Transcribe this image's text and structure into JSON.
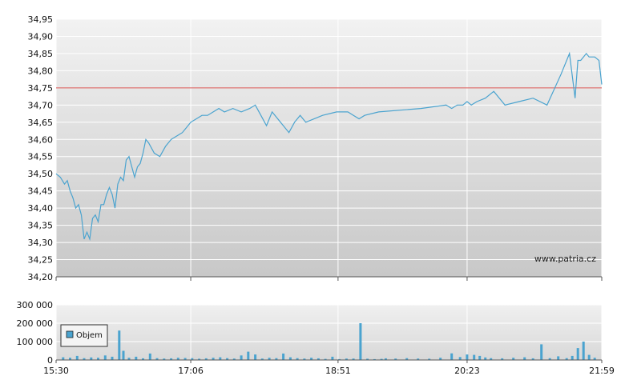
{
  "watermark": "www.patria.cz",
  "chart_data": [
    {
      "type": "line",
      "ylim": [
        34.2,
        34.95
      ],
      "y_ticks": [
        "34,20",
        "34,25",
        "34,30",
        "34,35",
        "34,40",
        "34,45",
        "34,50",
        "34,55",
        "34,60",
        "34,65",
        "34,70",
        "34,75",
        "34,80",
        "34,85",
        "34,90",
        "34,95"
      ],
      "x_ticks": [
        "15:30",
        "17:06",
        "18:51",
        "20:23",
        "21:59"
      ],
      "grid": true,
      "reference_line": 34.75,
      "colors": {
        "line": "#4aa3cf",
        "reference": "#d9534f"
      },
      "series": [
        {
          "x": [
            "15:30",
            "15:33",
            "15:36",
            "15:38",
            "15:40",
            "15:42",
            "15:44",
            "15:46",
            "15:48",
            "15:50",
            "15:52",
            "15:54",
            "15:56",
            "15:58",
            "16:00",
            "16:02",
            "16:04",
            "16:06",
            "16:08",
            "16:10",
            "16:12",
            "16:14",
            "16:16",
            "16:18",
            "16:20",
            "16:22",
            "16:24",
            "16:26",
            "16:28",
            "16:30",
            "16:32",
            "16:34",
            "16:36",
            "16:40",
            "16:44",
            "16:48",
            "16:52",
            "16:56",
            "17:00",
            "17:04",
            "17:06",
            "17:10",
            "17:14",
            "17:18",
            "17:22",
            "17:26",
            "17:30",
            "17:36",
            "17:42",
            "17:48",
            "17:52",
            "17:56",
            "18:00",
            "18:04",
            "18:08",
            "18:12",
            "18:16",
            "18:20",
            "18:24",
            "18:28",
            "18:40",
            "18:50",
            "18:58",
            "19:02",
            "19:06",
            "19:10",
            "19:20",
            "19:50",
            "20:08",
            "20:12",
            "20:16",
            "20:20",
            "20:23",
            "20:26",
            "20:30",
            "20:36",
            "20:42",
            "20:50",
            "21:00",
            "21:10",
            "21:20",
            "21:30",
            "21:36",
            "21:40",
            "21:42",
            "21:44",
            "21:46",
            "21:48",
            "21:50",
            "21:54",
            "21:57",
            "21:59"
          ],
          "values": [
            34.5,
            34.49,
            34.47,
            34.48,
            34.45,
            34.43,
            34.4,
            34.41,
            34.38,
            34.31,
            34.33,
            34.31,
            34.37,
            34.38,
            34.36,
            34.41,
            34.41,
            34.44,
            34.46,
            34.44,
            34.4,
            34.47,
            34.49,
            34.48,
            34.54,
            34.55,
            34.52,
            34.49,
            34.52,
            34.53,
            34.56,
            34.6,
            34.59,
            34.56,
            34.55,
            34.58,
            34.6,
            34.61,
            34.62,
            34.64,
            34.65,
            34.66,
            34.67,
            34.67,
            34.68,
            34.69,
            34.68,
            34.69,
            34.68,
            34.69,
            34.7,
            34.67,
            34.64,
            34.68,
            34.66,
            34.64,
            34.62,
            34.65,
            34.67,
            34.65,
            34.67,
            34.68,
            34.68,
            34.67,
            34.66,
            34.67,
            34.68,
            34.69,
            34.7,
            34.69,
            34.7,
            34.7,
            34.71,
            34.7,
            34.71,
            34.72,
            34.74,
            34.7,
            34.71,
            34.72,
            34.7,
            34.79,
            34.85,
            34.72,
            34.83,
            34.83,
            34.84,
            34.85,
            34.84,
            34.84,
            34.83,
            34.76
          ]
        }
      ]
    },
    {
      "type": "bar",
      "ylim": [
        0,
        300000
      ],
      "y_ticks": [
        "0",
        "100 000",
        "200 000",
        "300 000"
      ],
      "x_ticks": [
        "15:30",
        "17:06",
        "18:51",
        "20:23",
        "21:59"
      ],
      "grid": true,
      "legend": {
        "label": "Objem",
        "placement": "top-left"
      },
      "colors": {
        "bar": "#4aa3cf"
      },
      "series": [
        {
          "name": "Objem",
          "x": [
            "15:35",
            "15:40",
            "15:45",
            "15:50",
            "15:55",
            "16:00",
            "16:05",
            "16:10",
            "16:15",
            "16:18",
            "16:22",
            "16:27",
            "16:32",
            "16:37",
            "16:42",
            "16:47",
            "16:52",
            "16:57",
            "17:02",
            "17:07",
            "17:12",
            "17:17",
            "17:22",
            "17:27",
            "17:32",
            "17:37",
            "17:42",
            "17:47",
            "17:52",
            "17:57",
            "18:02",
            "18:07",
            "18:12",
            "18:17",
            "18:22",
            "18:27",
            "18:32",
            "18:37",
            "18:42",
            "18:47",
            "18:52",
            "18:57",
            "19:02",
            "19:07",
            "19:12",
            "19:17",
            "19:22",
            "19:25",
            "19:32",
            "19:40",
            "19:48",
            "19:56",
            "20:04",
            "20:12",
            "20:18",
            "20:23",
            "20:28",
            "20:32",
            "20:36",
            "20:40",
            "20:48",
            "20:56",
            "21:04",
            "21:10",
            "21:16",
            "21:22",
            "21:28",
            "21:34",
            "21:38",
            "21:42",
            "21:46",
            "21:50",
            "21:54"
          ],
          "values": [
            15000,
            12000,
            22000,
            10000,
            14000,
            12000,
            25000,
            18000,
            160000,
            50000,
            12000,
            18000,
            9000,
            35000,
            10000,
            8000,
            9000,
            12000,
            11000,
            10000,
            7000,
            9000,
            12000,
            15000,
            10000,
            8000,
            25000,
            45000,
            30000,
            8000,
            12000,
            10000,
            35000,
            15000,
            10000,
            8000,
            12000,
            9000,
            6000,
            18000,
            5000,
            8000,
            8000,
            200000,
            7000,
            5000,
            6000,
            9000,
            8000,
            10000,
            8000,
            7000,
            12000,
            36000,
            16000,
            30000,
            28000,
            22000,
            14000,
            10000,
            9000,
            12000,
            15000,
            9000,
            85000,
            10000,
            20000,
            10000,
            22000,
            65000,
            100000,
            28000,
            12000
          ]
        }
      ]
    }
  ]
}
